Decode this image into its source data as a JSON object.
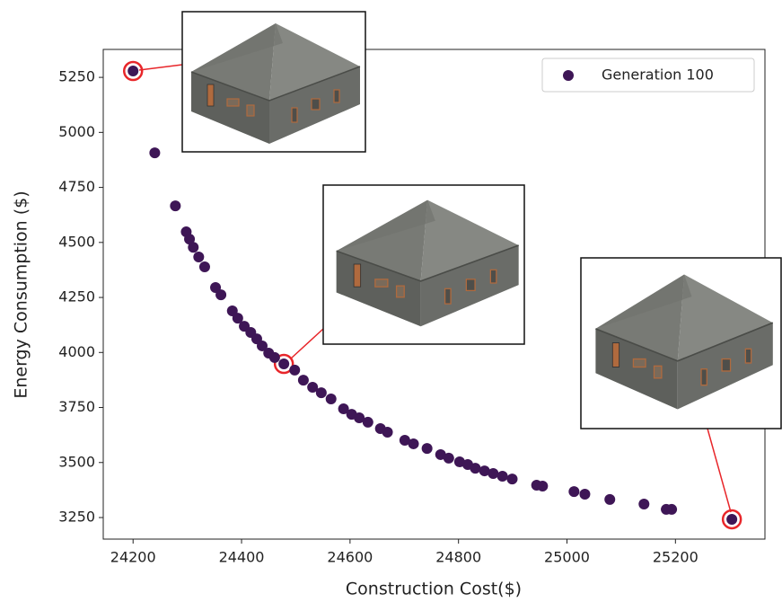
{
  "chart_data": {
    "type": "scatter",
    "x_label": "Construction Cost($)",
    "y_label": "Energy Consumption ($)",
    "series": [
      {
        "name": "Generation 100",
        "color": "#3e1656",
        "x": [
          24200,
          24240,
          24278,
          24298,
          24304,
          24311,
          24321,
          24332,
          24352,
          24362,
          24383,
          24393,
          24405,
          24417,
          24428,
          24438,
          24450,
          24461,
          24478,
          24498,
          24514,
          24531,
          24547,
          24565,
          24588,
          24603,
          24617,
          24633,
          24656,
          24669,
          24701,
          24717,
          24742,
          24767,
          24782,
          24802,
          24817,
          24831,
          24848,
          24864,
          24881,
          24899,
          24944,
          24955,
          25013,
          25033,
          25079,
          25142,
          25183,
          25193,
          25304
        ],
        "values": [
          5279,
          4907,
          4666,
          4548,
          4515,
          4478,
          4434,
          4389,
          4295,
          4262,
          4189,
          4156,
          4119,
          4091,
          4062,
          4030,
          3997,
          3977,
          3948,
          3920,
          3874,
          3842,
          3817,
          3789,
          3744,
          3719,
          3703,
          3683,
          3654,
          3638,
          3601,
          3585,
          3564,
          3536,
          3520,
          3503,
          3491,
          3474,
          3462,
          3450,
          3438,
          3425,
          3397,
          3393,
          3368,
          3356,
          3332,
          3311,
          3287,
          3287,
          3242
        ]
      }
    ],
    "highlighted": [
      0,
      18,
      50
    ],
    "highlight_color": "#e8262a",
    "xlim": [
      24145,
      25365
    ],
    "ylim": [
      3152,
      5377
    ],
    "xticks": [
      24200,
      24400,
      24600,
      24800,
      25000,
      25200
    ],
    "yticks": [
      3250,
      3500,
      3750,
      4000,
      4250,
      4500,
      4750,
      5000,
      5250
    ],
    "legend": "upper right",
    "grid": false
  }
}
